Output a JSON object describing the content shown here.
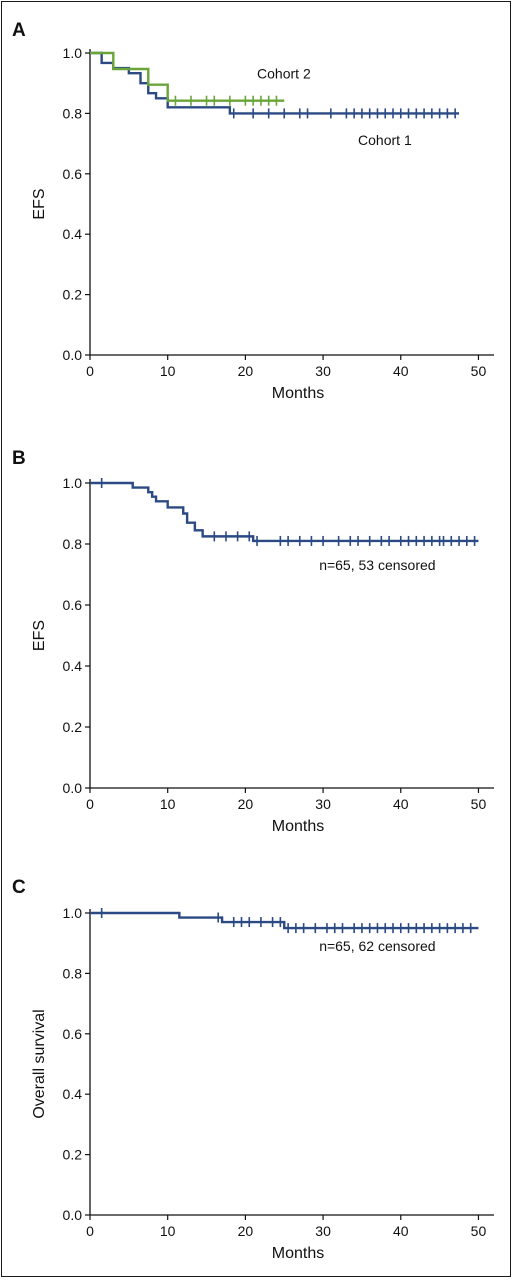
{
  "colors": {
    "cohort1": "#2b4a84",
    "cohort2": "#6aa539",
    "axis": "#111111"
  },
  "chart_data": [
    {
      "panel": "A",
      "type": "line",
      "title": "",
      "xlabel": "Months",
      "ylabel": "EFS",
      "xlim": [
        0,
        52
      ],
      "ylim": [
        0,
        1
      ],
      "xticks": [
        0,
        10,
        20,
        30,
        40,
        50
      ],
      "yticks": [
        0.0,
        0.2,
        0.4,
        0.6,
        0.8,
        1.0
      ],
      "grid": false,
      "legend": "none",
      "series": [
        {
          "name": "Cohort 1",
          "color": "#2b4a84",
          "steps": [
            [
              0,
              1.0
            ],
            [
              1.5,
              0.967
            ],
            [
              3.0,
              0.95
            ],
            [
              5.0,
              0.933
            ],
            [
              6.5,
              0.9
            ],
            [
              7.5,
              0.867
            ],
            [
              8.5,
              0.85
            ],
            [
              10.0,
              0.82
            ],
            [
              18.0,
              0.8
            ],
            [
              47.5,
              0.8
            ]
          ],
          "censored": [
            18.5,
            21,
            23,
            25,
            27,
            28,
            31,
            33,
            34,
            35,
            36,
            37,
            38,
            39,
            40,
            41,
            42,
            43,
            44,
            45,
            46,
            47
          ]
        },
        {
          "name": "Cohort 2",
          "color": "#6aa539",
          "steps": [
            [
              0,
              1.0
            ],
            [
              3.0,
              0.947
            ],
            [
              7.5,
              0.895
            ],
            [
              10.0,
              0.842
            ],
            [
              25.0,
              0.842
            ]
          ],
          "censored": [
            11,
            13,
            15,
            16,
            18,
            20,
            21,
            22,
            23,
            24
          ]
        }
      ],
      "annotations": [
        {
          "text": "Cohort 2",
          "x": 21.5,
          "y": 0.915
        },
        {
          "text": "Cohort 1",
          "x": 34.5,
          "y": 0.695
        }
      ]
    },
    {
      "panel": "B",
      "type": "line",
      "title": "",
      "xlabel": "Months",
      "ylabel": "EFS",
      "xlim": [
        0,
        52
      ],
      "ylim": [
        0,
        1
      ],
      "xticks": [
        0,
        10,
        20,
        30,
        40,
        50
      ],
      "yticks": [
        0.0,
        0.2,
        0.4,
        0.6,
        0.8,
        1.0
      ],
      "grid": false,
      "legend": "none",
      "series": [
        {
          "name": "",
          "color": "#2b4a84",
          "steps": [
            [
              0,
              1.0
            ],
            [
              5.5,
              0.985
            ],
            [
              7.5,
              0.97
            ],
            [
              8.0,
              0.955
            ],
            [
              8.5,
              0.94
            ],
            [
              10.0,
              0.92
            ],
            [
              12.0,
              0.9
            ],
            [
              12.5,
              0.87
            ],
            [
              13.5,
              0.845
            ],
            [
              14.5,
              0.825
            ],
            [
              21.0,
              0.81
            ],
            [
              50.0,
              0.81
            ]
          ],
          "censored": [
            1.5,
            16,
            17.5,
            19,
            20.5,
            21.5,
            24.5,
            25.5,
            27,
            28.5,
            30,
            32,
            33.5,
            34.5,
            36,
            37.5,
            38.5,
            40,
            41,
            42,
            43,
            44,
            45,
            45.5,
            46.5,
            47.5,
            48.5,
            49.5
          ]
        }
      ],
      "annotations": [
        {
          "text": "n=65, 53 censored",
          "x": 29.5,
          "y": 0.715
        }
      ]
    },
    {
      "panel": "C",
      "type": "line",
      "title": "",
      "xlabel": "Months",
      "ylabel": "Overall survival",
      "xlim": [
        0,
        52
      ],
      "ylim": [
        0,
        1
      ],
      "xticks": [
        0,
        10,
        20,
        30,
        40,
        50
      ],
      "yticks": [
        0.0,
        0.2,
        0.4,
        0.6,
        0.8,
        1.0
      ],
      "grid": false,
      "legend": "none",
      "series": [
        {
          "name": "",
          "color": "#2b4a84",
          "steps": [
            [
              0,
              1.0
            ],
            [
              11.5,
              0.985
            ],
            [
              17.0,
              0.97
            ],
            [
              25.0,
              0.95
            ],
            [
              50.0,
              0.95
            ]
          ],
          "censored": [
            1.5,
            16.5,
            18.5,
            19.5,
            20.5,
            22,
            23.5,
            24.5,
            25.5,
            26.5,
            27.5,
            29,
            30.5,
            31.5,
            32.5,
            34,
            35,
            36,
            37,
            38,
            39,
            40,
            41,
            42,
            43,
            44,
            45,
            46,
            47,
            48,
            49
          ]
        }
      ],
      "annotations": [
        {
          "text": "n=65, 62 censored",
          "x": 29.5,
          "y": 0.875
        }
      ]
    }
  ]
}
